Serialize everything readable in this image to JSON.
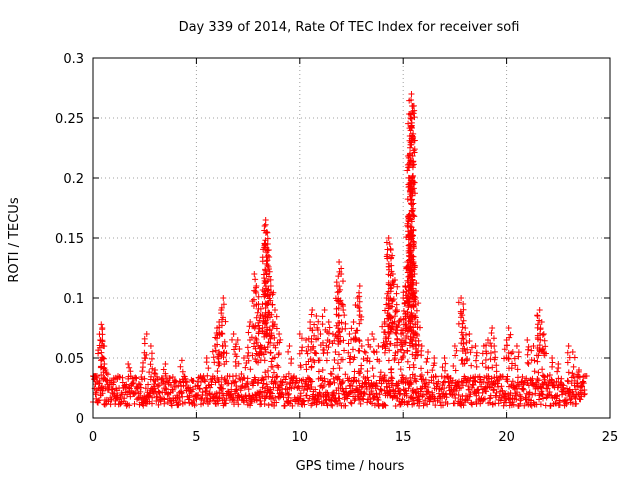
{
  "chart_data": {
    "type": "scatter",
    "title": "Day 339 of 2014, Rate Of TEC Index for receiver sofi",
    "xlabel": "GPS time / hours",
    "ylabel": "ROTI / TECUs",
    "xlim": [
      0,
      25
    ],
    "ylim": [
      0,
      0.3
    ],
    "x_ticks": [
      0,
      5,
      10,
      15,
      20,
      25
    ],
    "x_tick_labels": [
      "0",
      "5",
      "10",
      "15",
      "20",
      "25"
    ],
    "y_ticks": [
      0,
      0.05,
      0.1,
      0.15,
      0.2,
      0.25,
      0.3
    ],
    "y_tick_labels": [
      "0",
      "0.05",
      "0.1",
      "0.15",
      "0.2",
      "0.25",
      "0.3"
    ],
    "grid": true,
    "marker": "+",
    "color": "#ff0000",
    "x_data_range": [
      0,
      23.8
    ],
    "baseline_band": [
      0.01,
      0.035
    ],
    "series": [
      {
        "name": "ROTI",
        "points": [
          [
            0.1,
            0.035
          ],
          [
            0.2,
            0.03
          ],
          [
            0.35,
            0.065
          ],
          [
            0.4,
            0.078
          ],
          [
            0.45,
            0.075
          ],
          [
            0.5,
            0.06
          ],
          [
            0.55,
            0.045
          ],
          [
            0.6,
            0.04
          ],
          [
            1.0,
            0.03
          ],
          [
            1.7,
            0.045
          ],
          [
            2.5,
            0.05
          ],
          [
            2.6,
            0.07
          ],
          [
            2.8,
            0.06
          ],
          [
            3.0,
            0.04
          ],
          [
            3.5,
            0.045
          ],
          [
            4.3,
            0.048
          ],
          [
            5.5,
            0.05
          ],
          [
            5.9,
            0.06
          ],
          [
            6.0,
            0.075
          ],
          [
            6.1,
            0.08
          ],
          [
            6.2,
            0.09
          ],
          [
            6.3,
            0.1
          ],
          [
            6.4,
            0.06
          ],
          [
            6.8,
            0.07
          ],
          [
            7.0,
            0.065
          ],
          [
            7.3,
            0.05
          ],
          [
            7.6,
            0.08
          ],
          [
            7.8,
            0.12
          ],
          [
            7.9,
            0.11
          ],
          [
            8.0,
            0.095
          ],
          [
            8.1,
            0.085
          ],
          [
            8.2,
            0.075
          ],
          [
            8.3,
            0.16
          ],
          [
            8.35,
            0.165
          ],
          [
            8.4,
            0.155
          ],
          [
            8.45,
            0.145
          ],
          [
            8.5,
            0.14
          ],
          [
            8.6,
            0.11
          ],
          [
            8.7,
            0.08
          ],
          [
            8.8,
            0.09
          ],
          [
            9.0,
            0.07
          ],
          [
            9.5,
            0.06
          ],
          [
            10.0,
            0.07
          ],
          [
            10.3,
            0.065
          ],
          [
            10.5,
            0.08
          ],
          [
            10.6,
            0.09
          ],
          [
            10.8,
            0.085
          ],
          [
            11.0,
            0.07
          ],
          [
            11.2,
            0.09
          ],
          [
            11.4,
            0.08
          ],
          [
            11.6,
            0.07
          ],
          [
            11.8,
            0.11
          ],
          [
            11.9,
            0.13
          ],
          [
            12.0,
            0.12
          ],
          [
            12.1,
            0.09
          ],
          [
            12.4,
            0.07
          ],
          [
            12.6,
            0.08
          ],
          [
            12.8,
            0.1
          ],
          [
            12.9,
            0.11
          ],
          [
            13.0,
            0.06
          ],
          [
            13.3,
            0.065
          ],
          [
            13.5,
            0.07
          ],
          [
            13.8,
            0.06
          ],
          [
            14.1,
            0.08
          ],
          [
            14.2,
            0.1
          ],
          [
            14.3,
            0.15
          ],
          [
            14.35,
            0.145
          ],
          [
            14.4,
            0.14
          ],
          [
            14.5,
            0.12
          ],
          [
            14.6,
            0.115
          ],
          [
            14.7,
            0.09
          ],
          [
            14.8,
            0.08
          ],
          [
            14.9,
            0.07
          ],
          [
            15.0,
            0.1
          ],
          [
            15.1,
            0.11
          ],
          [
            15.2,
            0.13
          ],
          [
            15.25,
            0.165
          ],
          [
            15.3,
            0.2
          ],
          [
            15.32,
            0.235
          ],
          [
            15.35,
            0.25
          ],
          [
            15.38,
            0.265
          ],
          [
            15.4,
            0.27
          ],
          [
            15.43,
            0.26
          ],
          [
            15.45,
            0.255
          ],
          [
            15.5,
            0.13
          ],
          [
            15.55,
            0.12
          ],
          [
            15.6,
            0.1
          ],
          [
            15.7,
            0.08
          ],
          [
            15.9,
            0.06
          ],
          [
            16.2,
            0.055
          ],
          [
            16.5,
            0.05
          ],
          [
            17.0,
            0.05
          ],
          [
            17.5,
            0.06
          ],
          [
            17.8,
            0.1
          ],
          [
            17.9,
            0.095
          ],
          [
            18.0,
            0.075
          ],
          [
            18.2,
            0.07
          ],
          [
            18.5,
            0.06
          ],
          [
            18.9,
            0.06
          ],
          [
            19.1,
            0.065
          ],
          [
            19.3,
            0.075
          ],
          [
            19.4,
            0.06
          ],
          [
            20.0,
            0.065
          ],
          [
            20.1,
            0.075
          ],
          [
            20.3,
            0.055
          ],
          [
            20.5,
            0.06
          ],
          [
            21.0,
            0.065
          ],
          [
            21.3,
            0.06
          ],
          [
            21.5,
            0.085
          ],
          [
            21.6,
            0.09
          ],
          [
            21.7,
            0.08
          ],
          [
            21.8,
            0.07
          ],
          [
            22.2,
            0.05
          ],
          [
            22.5,
            0.045
          ],
          [
            23.0,
            0.06
          ],
          [
            23.2,
            0.055
          ],
          [
            23.5,
            0.04
          ],
          [
            23.8,
            0.035
          ]
        ]
      }
    ]
  }
}
